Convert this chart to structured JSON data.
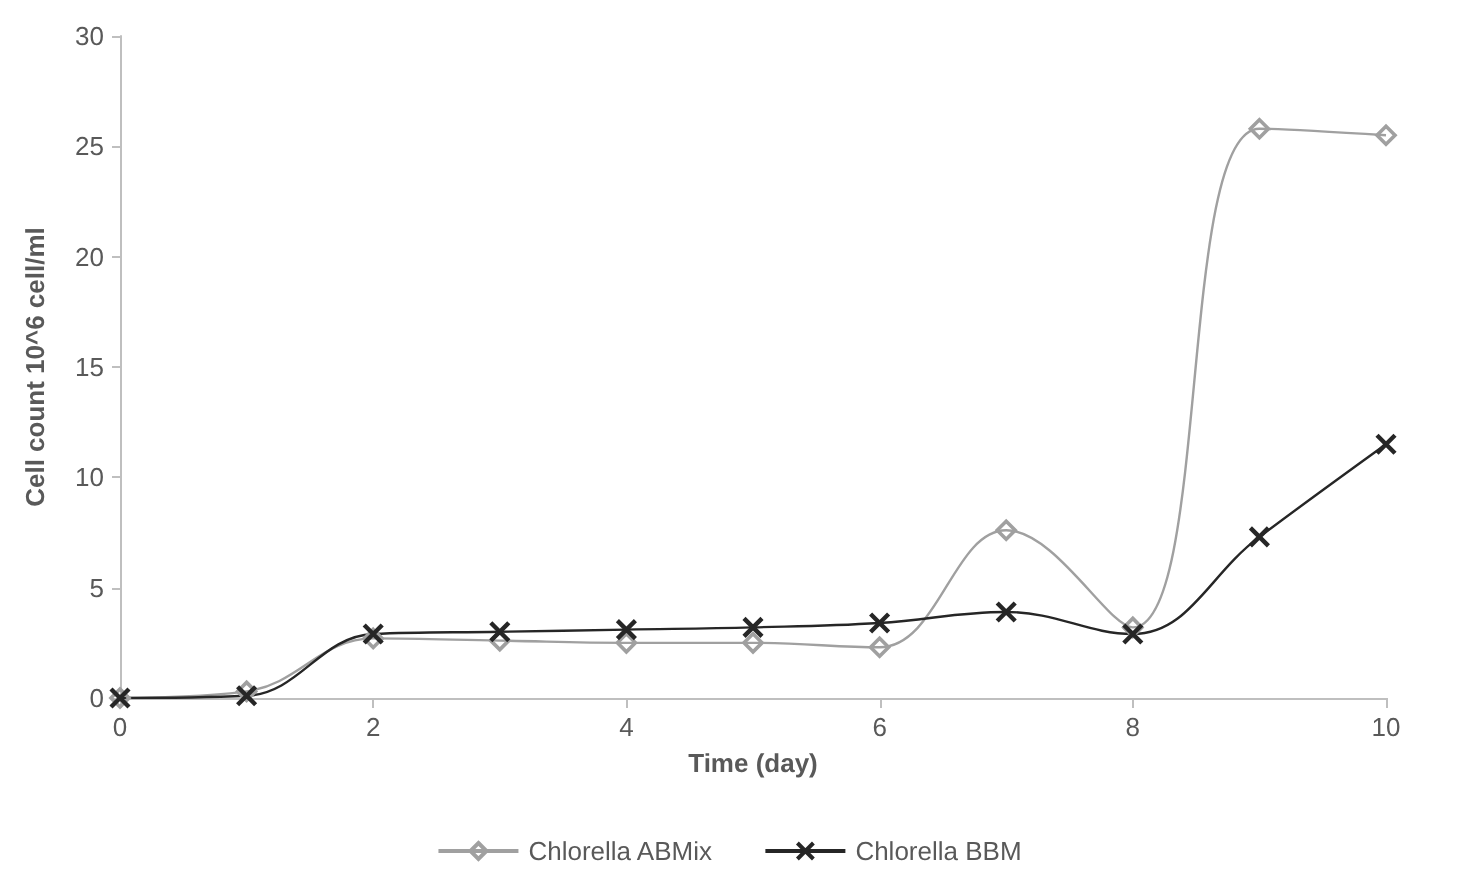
{
  "chart_data": {
    "type": "line",
    "xlabel": "Time (day)",
    "ylabel": "Cell count 10^6 cell/ml",
    "x": [
      0,
      1,
      2,
      3,
      4,
      5,
      6,
      7,
      8,
      9,
      10
    ],
    "series": [
      {
        "name": "Chlorella ABMix",
        "color": "#a0a0a0",
        "marker": "diamond",
        "values": [
          0,
          0.3,
          2.7,
          2.6,
          2.5,
          2.5,
          2.3,
          7.6,
          3.2,
          25.8,
          25.5
        ]
      },
      {
        "name": "Chlorella BBM",
        "color": "#262626",
        "marker": "cross",
        "values": [
          0,
          0.1,
          2.9,
          3.0,
          3.1,
          3.2,
          3.4,
          3.9,
          2.9,
          7.3,
          11.5
        ]
      }
    ],
    "xlim": [
      0,
      10
    ],
    "xticks": [
      0,
      2,
      4,
      6,
      8,
      10
    ],
    "ylim": [
      0,
      30
    ],
    "yticks": [
      0,
      5,
      10,
      15,
      20,
      25,
      30
    ],
    "grid": false,
    "legend": "bottom",
    "line_style": "solid"
  }
}
